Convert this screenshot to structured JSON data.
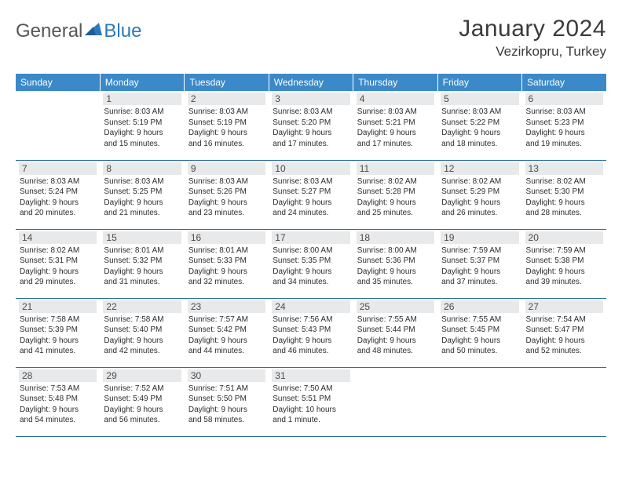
{
  "logo": {
    "textGeneral": "General",
    "textBlue": "Blue"
  },
  "header": {
    "monthTitle": "January 2024",
    "location": "Vezirkopru, Turkey"
  },
  "colors": {
    "headerBg": "#3b89c9",
    "headerText": "#ffffff",
    "dayNumBg": "#e8e9ea",
    "bodyText": "#2b2c2e",
    "rowBorder": "#2a6fa8",
    "logoBlue": "#2a7abf",
    "logoGray": "#555658"
  },
  "weekdays": [
    "Sunday",
    "Monday",
    "Tuesday",
    "Wednesday",
    "Thursday",
    "Friday",
    "Saturday"
  ],
  "weeks": [
    [
      null,
      {
        "num": "1",
        "sunrise": "Sunrise: 8:03 AM",
        "sunset": "Sunset: 5:19 PM",
        "day1": "Daylight: 9 hours",
        "day2": "and 15 minutes."
      },
      {
        "num": "2",
        "sunrise": "Sunrise: 8:03 AM",
        "sunset": "Sunset: 5:19 PM",
        "day1": "Daylight: 9 hours",
        "day2": "and 16 minutes."
      },
      {
        "num": "3",
        "sunrise": "Sunrise: 8:03 AM",
        "sunset": "Sunset: 5:20 PM",
        "day1": "Daylight: 9 hours",
        "day2": "and 17 minutes."
      },
      {
        "num": "4",
        "sunrise": "Sunrise: 8:03 AM",
        "sunset": "Sunset: 5:21 PM",
        "day1": "Daylight: 9 hours",
        "day2": "and 17 minutes."
      },
      {
        "num": "5",
        "sunrise": "Sunrise: 8:03 AM",
        "sunset": "Sunset: 5:22 PM",
        "day1": "Daylight: 9 hours",
        "day2": "and 18 minutes."
      },
      {
        "num": "6",
        "sunrise": "Sunrise: 8:03 AM",
        "sunset": "Sunset: 5:23 PM",
        "day1": "Daylight: 9 hours",
        "day2": "and 19 minutes."
      }
    ],
    [
      {
        "num": "7",
        "sunrise": "Sunrise: 8:03 AM",
        "sunset": "Sunset: 5:24 PM",
        "day1": "Daylight: 9 hours",
        "day2": "and 20 minutes."
      },
      {
        "num": "8",
        "sunrise": "Sunrise: 8:03 AM",
        "sunset": "Sunset: 5:25 PM",
        "day1": "Daylight: 9 hours",
        "day2": "and 21 minutes."
      },
      {
        "num": "9",
        "sunrise": "Sunrise: 8:03 AM",
        "sunset": "Sunset: 5:26 PM",
        "day1": "Daylight: 9 hours",
        "day2": "and 23 minutes."
      },
      {
        "num": "10",
        "sunrise": "Sunrise: 8:03 AM",
        "sunset": "Sunset: 5:27 PM",
        "day1": "Daylight: 9 hours",
        "day2": "and 24 minutes."
      },
      {
        "num": "11",
        "sunrise": "Sunrise: 8:02 AM",
        "sunset": "Sunset: 5:28 PM",
        "day1": "Daylight: 9 hours",
        "day2": "and 25 minutes."
      },
      {
        "num": "12",
        "sunrise": "Sunrise: 8:02 AM",
        "sunset": "Sunset: 5:29 PM",
        "day1": "Daylight: 9 hours",
        "day2": "and 26 minutes."
      },
      {
        "num": "13",
        "sunrise": "Sunrise: 8:02 AM",
        "sunset": "Sunset: 5:30 PM",
        "day1": "Daylight: 9 hours",
        "day2": "and 28 minutes."
      }
    ],
    [
      {
        "num": "14",
        "sunrise": "Sunrise: 8:02 AM",
        "sunset": "Sunset: 5:31 PM",
        "day1": "Daylight: 9 hours",
        "day2": "and 29 minutes."
      },
      {
        "num": "15",
        "sunrise": "Sunrise: 8:01 AM",
        "sunset": "Sunset: 5:32 PM",
        "day1": "Daylight: 9 hours",
        "day2": "and 31 minutes."
      },
      {
        "num": "16",
        "sunrise": "Sunrise: 8:01 AM",
        "sunset": "Sunset: 5:33 PM",
        "day1": "Daylight: 9 hours",
        "day2": "and 32 minutes."
      },
      {
        "num": "17",
        "sunrise": "Sunrise: 8:00 AM",
        "sunset": "Sunset: 5:35 PM",
        "day1": "Daylight: 9 hours",
        "day2": "and 34 minutes."
      },
      {
        "num": "18",
        "sunrise": "Sunrise: 8:00 AM",
        "sunset": "Sunset: 5:36 PM",
        "day1": "Daylight: 9 hours",
        "day2": "and 35 minutes."
      },
      {
        "num": "19",
        "sunrise": "Sunrise: 7:59 AM",
        "sunset": "Sunset: 5:37 PM",
        "day1": "Daylight: 9 hours",
        "day2": "and 37 minutes."
      },
      {
        "num": "20",
        "sunrise": "Sunrise: 7:59 AM",
        "sunset": "Sunset: 5:38 PM",
        "day1": "Daylight: 9 hours",
        "day2": "and 39 minutes."
      }
    ],
    [
      {
        "num": "21",
        "sunrise": "Sunrise: 7:58 AM",
        "sunset": "Sunset: 5:39 PM",
        "day1": "Daylight: 9 hours",
        "day2": "and 41 minutes."
      },
      {
        "num": "22",
        "sunrise": "Sunrise: 7:58 AM",
        "sunset": "Sunset: 5:40 PM",
        "day1": "Daylight: 9 hours",
        "day2": "and 42 minutes."
      },
      {
        "num": "23",
        "sunrise": "Sunrise: 7:57 AM",
        "sunset": "Sunset: 5:42 PM",
        "day1": "Daylight: 9 hours",
        "day2": "and 44 minutes."
      },
      {
        "num": "24",
        "sunrise": "Sunrise: 7:56 AM",
        "sunset": "Sunset: 5:43 PM",
        "day1": "Daylight: 9 hours",
        "day2": "and 46 minutes."
      },
      {
        "num": "25",
        "sunrise": "Sunrise: 7:55 AM",
        "sunset": "Sunset: 5:44 PM",
        "day1": "Daylight: 9 hours",
        "day2": "and 48 minutes."
      },
      {
        "num": "26",
        "sunrise": "Sunrise: 7:55 AM",
        "sunset": "Sunset: 5:45 PM",
        "day1": "Daylight: 9 hours",
        "day2": "and 50 minutes."
      },
      {
        "num": "27",
        "sunrise": "Sunrise: 7:54 AM",
        "sunset": "Sunset: 5:47 PM",
        "day1": "Daylight: 9 hours",
        "day2": "and 52 minutes."
      }
    ],
    [
      {
        "num": "28",
        "sunrise": "Sunrise: 7:53 AM",
        "sunset": "Sunset: 5:48 PM",
        "day1": "Daylight: 9 hours",
        "day2": "and 54 minutes."
      },
      {
        "num": "29",
        "sunrise": "Sunrise: 7:52 AM",
        "sunset": "Sunset: 5:49 PM",
        "day1": "Daylight: 9 hours",
        "day2": "and 56 minutes."
      },
      {
        "num": "30",
        "sunrise": "Sunrise: 7:51 AM",
        "sunset": "Sunset: 5:50 PM",
        "day1": "Daylight: 9 hours",
        "day2": "and 58 minutes."
      },
      {
        "num": "31",
        "sunrise": "Sunrise: 7:50 AM",
        "sunset": "Sunset: 5:51 PM",
        "day1": "Daylight: 10 hours",
        "day2": "and 1 minute."
      },
      null,
      null,
      null
    ]
  ]
}
